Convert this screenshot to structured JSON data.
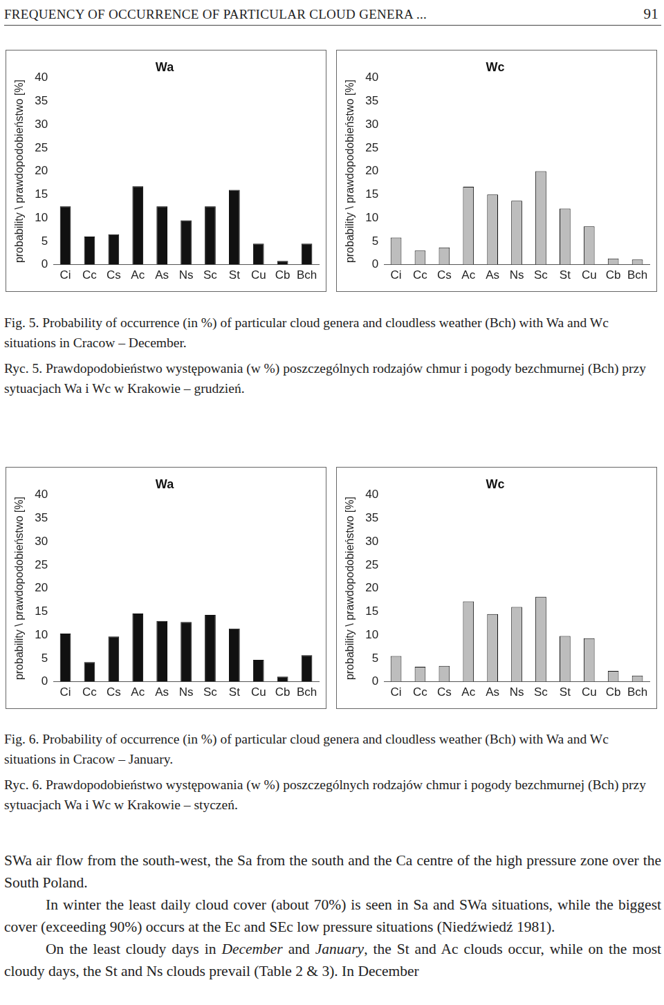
{
  "header": {
    "title": "FREQUENCY OF OCCURRENCE OF PARTICULAR CLOUD GENERA ...",
    "page": "91"
  },
  "chart_data": [
    {
      "type": "bar",
      "title": "Wa",
      "y_label": "probability \\ prawdopodobieństwo [%]",
      "categories": [
        "Ci",
        "Cc",
        "Cs",
        "Ac",
        "As",
        "Ns",
        "Sc",
        "St",
        "Cu",
        "Cb",
        "Bch"
      ],
      "values": [
        12.5,
        6,
        6.5,
        16.8,
        12.5,
        9.5,
        12.5,
        16,
        4.5,
        0.8,
        4.5
      ],
      "color": "#111111",
      "ylim": [
        0,
        40
      ],
      "yticks": [
        0,
        5,
        10,
        15,
        20,
        25,
        30,
        35,
        40
      ],
      "grid": false
    },
    {
      "type": "bar",
      "title": "Wc",
      "y_label": "probability \\ prawdopodobieństwo [%]",
      "categories": [
        "Ci",
        "Cc",
        "Cs",
        "Ac",
        "As",
        "Ns",
        "Sc",
        "St",
        "Cu",
        "Cb",
        "Bch"
      ],
      "values": [
        5.8,
        3,
        3.7,
        16.7,
        15,
        13.7,
        20,
        12,
        8.2,
        1.3,
        1.1
      ],
      "color": "#bdbdbd",
      "ylim": [
        0,
        40
      ],
      "yticks": [
        0,
        5,
        10,
        15,
        20,
        25,
        30,
        35,
        40
      ],
      "grid": false
    },
    {
      "type": "bar",
      "title": "Wa",
      "y_label": "probability \\ prawdopodobieństwo [%]",
      "categories": [
        "Ci",
        "Cc",
        "Cs",
        "Ac",
        "As",
        "Ns",
        "Sc",
        "St",
        "Cu",
        "Cb",
        "Bch"
      ],
      "values": [
        10.3,
        4.2,
        9.7,
        14.6,
        13,
        12.8,
        14.3,
        11.4,
        4.7,
        1.1,
        5.7
      ],
      "color": "#111111",
      "ylim": [
        0,
        40
      ],
      "yticks": [
        0,
        5,
        10,
        15,
        20,
        25,
        30,
        35,
        40
      ],
      "grid": false
    },
    {
      "type": "bar",
      "title": "Wc",
      "y_label": "probability \\ prawdopodobieństwo [%]",
      "categories": [
        "Ci",
        "Cc",
        "Cs",
        "Ac",
        "As",
        "Ns",
        "Sc",
        "St",
        "Cu",
        "Cb",
        "Bch"
      ],
      "values": [
        5.5,
        3.2,
        3.4,
        17.2,
        14.5,
        16,
        18.2,
        9.8,
        9.3,
        2.3,
        1.3
      ],
      "color": "#bdbdbd",
      "ylim": [
        0,
        40
      ],
      "yticks": [
        0,
        5,
        10,
        15,
        20,
        25,
        30,
        35,
        40
      ],
      "grid": false
    }
  ],
  "captions": [
    [
      "Fig. 5. Probability of occurrence (in %) of particular cloud genera and cloudless weather (Bch) with Wa and Wc situations in Cracow – December.",
      "Ryc. 5. Prawdopodobieństwo występowania (w %) poszczególnych rodzajów chmur i pogody bezchmurnej (Bch) przy sytuacjach Wa i Wc w Krakowie – grudzień."
    ],
    [
      "Fig. 6. Probability of occurrence (in %) of particular cloud genera and cloudless weather (Bch) with Wa and Wc situations in Cracow – January.",
      "Ryc. 6. Prawdopodobieństwo występowania (w %) poszczególnych rodzajów chmur i pogody bezchmurnej (Bch) przy sytuacjach Wa i Wc w Krakowie – styczeń."
    ]
  ],
  "body": [
    {
      "indent": false,
      "runs": [
        {
          "text": "SWa air flow from the south-west, the Sa from the south and the Ca centre of the high pressure zone over the South Poland."
        }
      ]
    },
    {
      "indent": true,
      "runs": [
        {
          "text": "In winter the least daily cloud cover (about 70%) is seen in Sa and SWa situations, while the biggest cover (exceeding 90%) occurs at the Ec and SEc low pressure situations (Niedźwiedź 1981)."
        }
      ]
    },
    {
      "indent": true,
      "runs": [
        {
          "text": "On the least cloudy days in "
        },
        {
          "text": "December",
          "italic": true
        },
        {
          "text": " and "
        },
        {
          "text": "January",
          "italic": true
        },
        {
          "text": ", the St and Ac clouds occur, while on the most cloudy days, the St and Ns clouds prevail (Table 2 & 3). In December"
        }
      ]
    }
  ]
}
